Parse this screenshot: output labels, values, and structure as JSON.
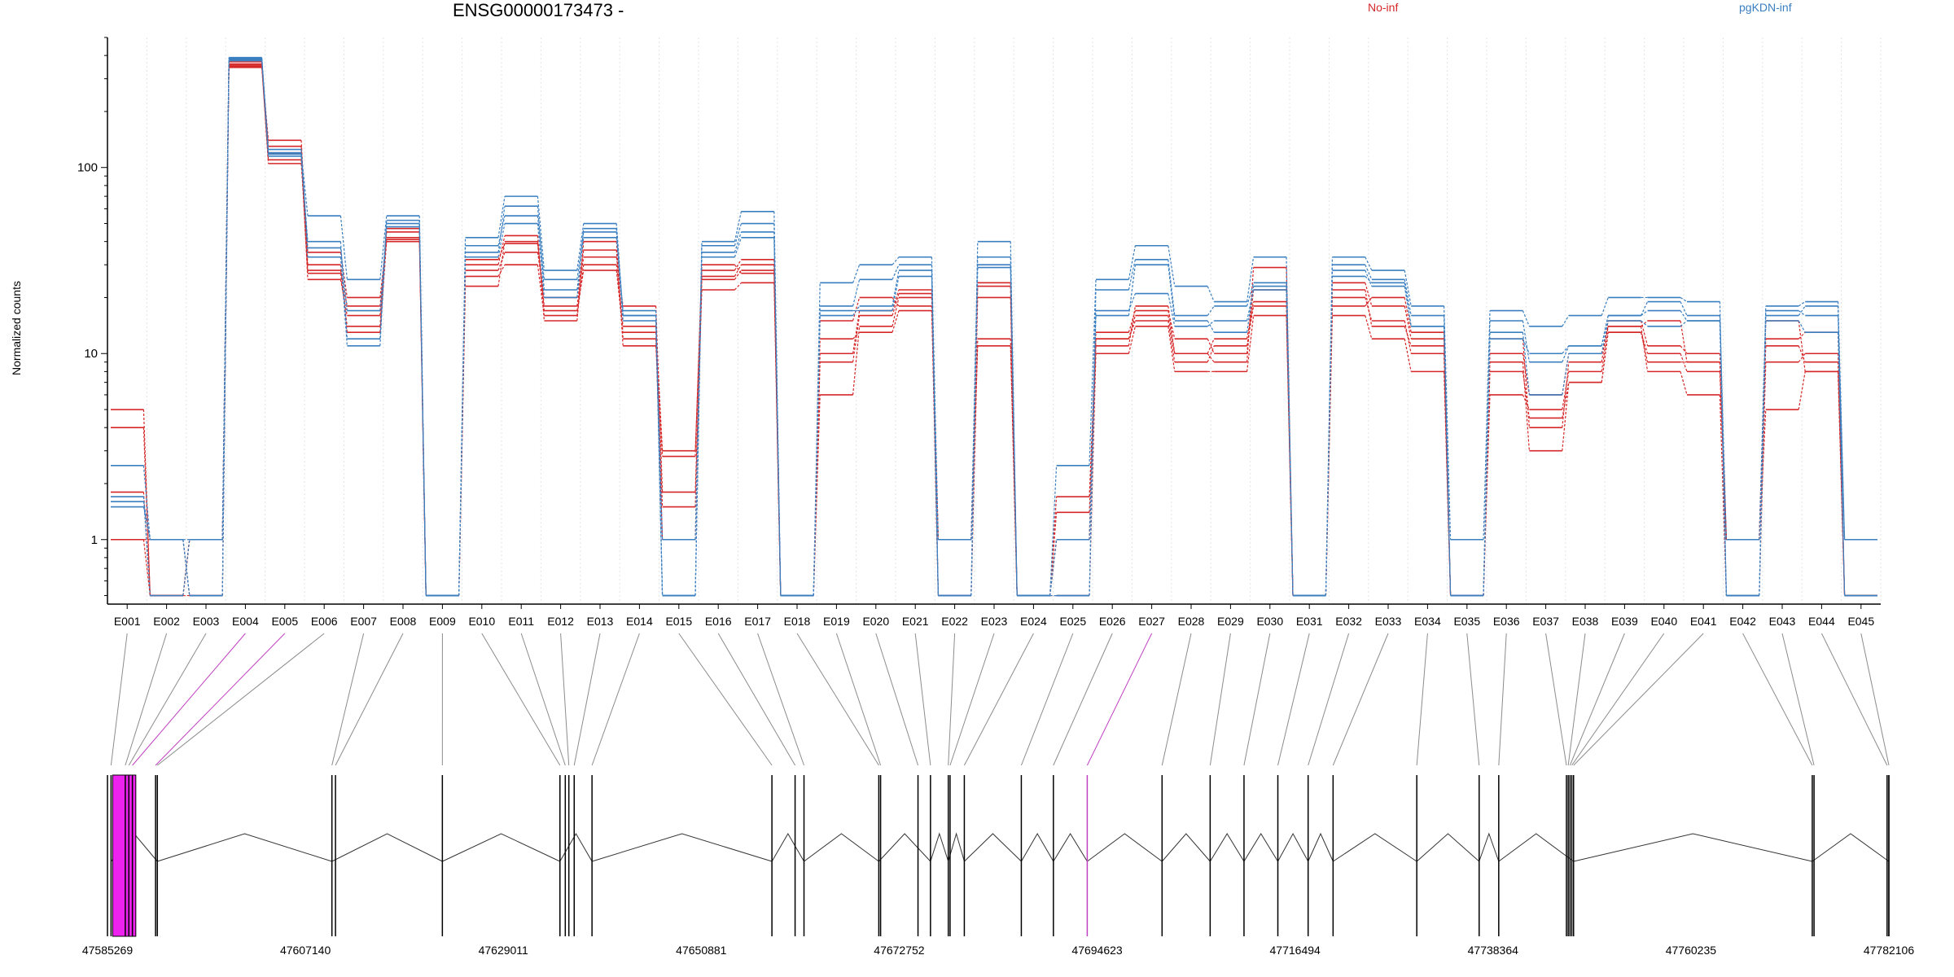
{
  "title": "ENSG00000173473 -",
  "legend": [
    {
      "label": "No-inf",
      "color": "#d62728"
    },
    {
      "label": "pgKDN-inf",
      "color": "#3a7fc0"
    }
  ],
  "ylabel": "Normalized counts",
  "chart_data": {
    "type": "line",
    "yscale": "log",
    "ylim": [
      0.45,
      500
    ],
    "yticks": [
      1,
      10,
      100
    ],
    "ytick_labels": [
      "1",
      "10",
      "100"
    ],
    "grid": true,
    "categories": [
      "E001",
      "E002",
      "E003",
      "E004",
      "E005",
      "E006",
      "E007",
      "E008",
      "E009",
      "E010",
      "E011",
      "E012",
      "E013",
      "E014",
      "E015",
      "E016",
      "E017",
      "E018",
      "E019",
      "E020",
      "E021",
      "E022",
      "E023",
      "E024",
      "E025",
      "E026",
      "E027",
      "E028",
      "E029",
      "E030",
      "E031",
      "E032",
      "E033",
      "E034",
      "E035",
      "E036",
      "E037",
      "E038",
      "E039",
      "E040",
      "E041",
      "E042",
      "E043",
      "E044",
      "E045"
    ],
    "series": [
      {
        "group": "No-inf",
        "color": "#d62728",
        "values": [
          5,
          0.5,
          1,
          350,
          140,
          30,
          13,
          40,
          0.5,
          26,
          30,
          16,
          30,
          14,
          3,
          25,
          28,
          0.5,
          10,
          17,
          22,
          1,
          11,
          0.5,
          1.7,
          12,
          16,
          10,
          12,
          19,
          0.5,
          20,
          15,
          10,
          0.5,
          9,
          3,
          7,
          13,
          9,
          9,
          1,
          5,
          8,
          0.5
        ]
      },
      {
        "group": "No-inf",
        "color": "#d62728",
        "values": [
          1.8,
          0.5,
          0.5,
          370,
          120,
          25,
          16,
          45,
          0.5,
          23,
          40,
          18,
          33,
          18,
          1.8,
          22,
          24,
          0.5,
          6,
          14,
          20,
          0.5,
          12,
          0.5,
          0.5,
          10,
          14,
          8,
          8,
          16,
          0.5,
          16,
          12,
          8,
          0.5,
          6,
          5,
          8,
          14,
          8,
          6,
          0.5,
          9,
          10,
          0.5
        ]
      },
      {
        "group": "No-inf",
        "color": "#d62728",
        "values": [
          1,
          1,
          0.5,
          360,
          130,
          28,
          18,
          42,
          0.5,
          28,
          35,
          20,
          36,
          12,
          1,
          28,
          32,
          0.5,
          15,
          20,
          18,
          0.5,
          23,
          0.5,
          1,
          13,
          17,
          12,
          10,
          22,
          0.5,
          24,
          18,
          12,
          0.5,
          10,
          6,
          10,
          14,
          15,
          9,
          1,
          12,
          13,
          0.5
        ]
      },
      {
        "group": "No-inf",
        "color": "#d62728",
        "values": [
          1,
          0.5,
          1,
          355,
          105,
          35,
          20,
          41,
          0.5,
          30,
          43,
          15,
          40,
          11,
          2.8,
          30,
          27,
          0.5,
          12,
          13,
          17,
          1,
          24,
          0.5,
          1,
          11,
          18,
          10,
          9,
          29,
          0.5,
          18,
          20,
          13,
          0.5,
          12,
          4,
          9,
          15,
          11,
          10,
          1,
          15,
          8,
          0.5
        ]
      },
      {
        "group": "No-inf",
        "color": "#d62728",
        "values": [
          4,
          0.5,
          1,
          345,
          110,
          27,
          14,
          47,
          0.5,
          32,
          39,
          17,
          28,
          13,
          1.5,
          26,
          30,
          0.5,
          9,
          16,
          21,
          0.5,
          20,
          0.5,
          1.4,
          12,
          15,
          9,
          11,
          18,
          0.5,
          22,
          14,
          11,
          0.5,
          8,
          4.5,
          7,
          13,
          10,
          8,
          1,
          11,
          9,
          0.5
        ]
      },
      {
        "group": "pgKDN-inf",
        "color": "#3a7fc0",
        "values": [
          2.5,
          1,
          1,
          390,
          120,
          55,
          25,
          55,
          0.5,
          42,
          70,
          28,
          50,
          16,
          0.5,
          40,
          58,
          0.5,
          24,
          30,
          33,
          0.5,
          40,
          0.5,
          2.5,
          25,
          38,
          23,
          19,
          33,
          0.5,
          33,
          28,
          18,
          1,
          17,
          14,
          16,
          20,
          20,
          19,
          0.5,
          18,
          19,
          1
        ]
      },
      {
        "group": "pgKDN-inf",
        "color": "#3a7fc0",
        "values": [
          1.5,
          1,
          0.5,
          380,
          115,
          40,
          12,
          50,
          0.5,
          38,
          55,
          25,
          45,
          15,
          1,
          38,
          50,
          0.5,
          18,
          25,
          30,
          1,
          33,
          0.5,
          0.5,
          22,
          32,
          16,
          18,
          24,
          0.5,
          30,
          25,
          16,
          0.5,
          15,
          9,
          11,
          16,
          19,
          16,
          1,
          17,
          16,
          1
        ]
      },
      {
        "group": "pgKDN-inf",
        "color": "#3a7fc0",
        "values": [
          1.7,
          0.5,
          1,
          385,
          125,
          33,
          11,
          52,
          0.5,
          35,
          62,
          22,
          42,
          17,
          0.5,
          33,
          42,
          0.5,
          16,
          18,
          28,
          0.5,
          30,
          0.5,
          1,
          17,
          21,
          14,
          15,
          22,
          0.5,
          28,
          23,
          14,
          0.5,
          12,
          10,
          11,
          16,
          17,
          15,
          0.5,
          16,
          18,
          0.5
        ]
      },
      {
        "group": "pgKDN-inf",
        "color": "#3a7fc0",
        "values": [
          1.6,
          1,
          0.5,
          375,
          118,
          37,
          17,
          48,
          0.5,
          33,
          50,
          20,
          47,
          16,
          0.5,
          35,
          45,
          0.5,
          17,
          17,
          26,
          0.5,
          29,
          0.5,
          0.5,
          16,
          30,
          15,
          13,
          23,
          0.5,
          26,
          24,
          14,
          0.5,
          13,
          6,
          10,
          15,
          14,
          15,
          0.5,
          15,
          13,
          0.5
        ]
      }
    ]
  },
  "gene_model": {
    "genomic_ticks": [
      "47585269",
      "47607140",
      "47629011",
      "47650881",
      "47672752",
      "47694623",
      "47716494",
      "47738364",
      "47760235",
      "47782106"
    ]
  }
}
